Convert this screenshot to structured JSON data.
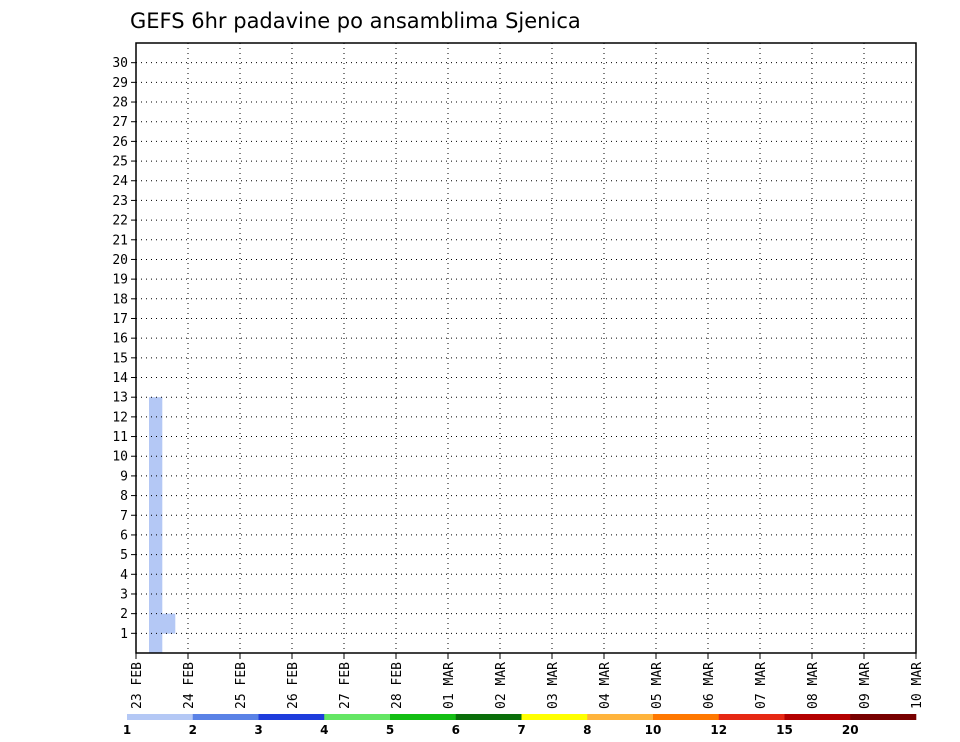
{
  "chart_data": {
    "type": "heatmap",
    "title": "GEFS 6hr padavine po ansamblima Sjenica",
    "members": [
      1,
      2,
      3,
      4,
      5,
      6,
      7,
      8,
      9,
      10,
      11,
      12,
      13,
      14,
      15,
      16,
      17,
      18,
      19,
      20,
      21,
      22,
      23,
      24,
      25,
      26,
      27,
      28,
      29,
      30
    ],
    "x_tick_labels": [
      "23 FEB",
      "24 FEB",
      "25 FEB",
      "26 FEB",
      "27 FEB",
      "28 FEB",
      "01 MAR",
      "02 MAR",
      "03 MAR",
      "04 MAR",
      "05 MAR",
      "06 MAR",
      "07 MAR",
      "08 MAR",
      "09 MAR",
      "10 MAR"
    ],
    "steps_per_day": 4,
    "grid": "dotted",
    "legend": {
      "position": "bottom",
      "levels": [
        "1",
        "2",
        "3",
        "4",
        "5",
        "6",
        "7",
        "8",
        "10",
        "12",
        "15",
        "20"
      ],
      "colors": [
        "#b4c8f5",
        "#5a82e6",
        "#1e3cdc",
        "#64e664",
        "#14be14",
        "#0a6e0a",
        "#ffff00",
        "#ffb43c",
        "#ff7800",
        "#e62814",
        "#b40000",
        "#780000"
      ]
    },
    "cells": [
      [
        0,
        1,
        1,
        16,
        16,
        1,
        17,
        17,
        1,
        18,
        18,
        2,
        28,
        28,
        1,
        29,
        29,
        1
      ],
      [
        1,
        1,
        2,
        16,
        16,
        2,
        17,
        17,
        1,
        18,
        18,
        1,
        19,
        19,
        1,
        20,
        20,
        1,
        21,
        21,
        5,
        22,
        22,
        1,
        28,
        28,
        1,
        40,
        40,
        1,
        74,
        74,
        1
      ],
      [
        2,
        1,
        1,
        16,
        16,
        2,
        17,
        17,
        2,
        18,
        18,
        2,
        19,
        19,
        1,
        20,
        20,
        1,
        25,
        25,
        1,
        26,
        26,
        1,
        34,
        34,
        1,
        35,
        35,
        2,
        36,
        36,
        2,
        42,
        42,
        3,
        45,
        45,
        3,
        46,
        46,
        4,
        47,
        47,
        4,
        48,
        48,
        4,
        49,
        49,
        4,
        53,
        54,
        2,
        61,
        62,
        2,
        70,
        70,
        1,
        71,
        71,
        2,
        74,
        74,
        3,
        75,
        75,
        1
      ],
      [
        3,
        1,
        1,
        16,
        16,
        1,
        17,
        17,
        1,
        18,
        18,
        1,
        19,
        19,
        1,
        20,
        20,
        2,
        21,
        21,
        3,
        22,
        22,
        3,
        23,
        23,
        1,
        24,
        24,
        3,
        25,
        25,
        8,
        28,
        28,
        1,
        29,
        29,
        1,
        30,
        30,
        3,
        45,
        45,
        1,
        52,
        54,
        1
      ],
      [
        4,
        1,
        1,
        16,
        16,
        1,
        17,
        17,
        1,
        18,
        18,
        2,
        19,
        19,
        2,
        20,
        20,
        4,
        21,
        21,
        5,
        25,
        25,
        7,
        26,
        26,
        9,
        27,
        27,
        9,
        28,
        28,
        5,
        29,
        29,
        4,
        30,
        30,
        1,
        38,
        38,
        1,
        40,
        40,
        1,
        42,
        42,
        1,
        44,
        44,
        2,
        49,
        49,
        4,
        50,
        50,
        4,
        55,
        55,
        2,
        73,
        73,
        1
      ],
      [
        5,
        1,
        1,
        16,
        16,
        2,
        17,
        17,
        4,
        18,
        18,
        3,
        19,
        19,
        5,
        20,
        20,
        5,
        21,
        21,
        1,
        22,
        22,
        2,
        23,
        23,
        2,
        24,
        24,
        3,
        25,
        25,
        5,
        26,
        26,
        6,
        27,
        27,
        7,
        35,
        35,
        1
      ],
      [
        6,
        1,
        1,
        16,
        16,
        2,
        17,
        17,
        3,
        18,
        18,
        6,
        19,
        19,
        5,
        20,
        20,
        6,
        21,
        21,
        2,
        22,
        22,
        5,
        23,
        23,
        5,
        24,
        24,
        1,
        25,
        25,
        1,
        28,
        28,
        1,
        29,
        29,
        2,
        30,
        30,
        2,
        31,
        31,
        1,
        32,
        32,
        1,
        33,
        33,
        1,
        34,
        34,
        1,
        35,
        35,
        2,
        36,
        36,
        2,
        37,
        37,
        2,
        38,
        38,
        1,
        39,
        39,
        1,
        40,
        40,
        1,
        42,
        42,
        1,
        53,
        53,
        1,
        55,
        55,
        1,
        62,
        62,
        1
      ],
      [
        7,
        1,
        1,
        16,
        16,
        2,
        17,
        17,
        2,
        18,
        18,
        1,
        19,
        19,
        1,
        20,
        20,
        3,
        21,
        21,
        1,
        22,
        22,
        6,
        23,
        23,
        6,
        24,
        24,
        3,
        25,
        25,
        9,
        26,
        26,
        9,
        27,
        27,
        1,
        30,
        30,
        2,
        31,
        31,
        1,
        32,
        32,
        1,
        33,
        33,
        2,
        34,
        34,
        2,
        35,
        35,
        3,
        36,
        36,
        2,
        38,
        38,
        1,
        40,
        40,
        1,
        44,
        44,
        1,
        48,
        48,
        1,
        49,
        49,
        1,
        50,
        50,
        1,
        52,
        52,
        1,
        58,
        58,
        2,
        59,
        59,
        2,
        60,
        60,
        2,
        62,
        62,
        1
      ],
      [
        8,
        1,
        1,
        16,
        16,
        1,
        17,
        17,
        1,
        18,
        18,
        1,
        19,
        19,
        1,
        20,
        20,
        1,
        21,
        21,
        2,
        22,
        22,
        1,
        23,
        23,
        1,
        25,
        25,
        1,
        28,
        28,
        1,
        32,
        32,
        1,
        43,
        43,
        1,
        44,
        44,
        1,
        45,
        45,
        1,
        53,
        53,
        1
      ],
      [
        9,
        1,
        1,
        16,
        16,
        2,
        17,
        17,
        1,
        18,
        18,
        1,
        19,
        19,
        2,
        20,
        20,
        1,
        21,
        21,
        3,
        22,
        22,
        1,
        23,
        23,
        5,
        24,
        24,
        7,
        25,
        25,
        8,
        26,
        26,
        9,
        27,
        27,
        10,
        28,
        28,
        1,
        29,
        29,
        1,
        30,
        30,
        1,
        31,
        31,
        1,
        32,
        32,
        1,
        37,
        37,
        1,
        40,
        40,
        1,
        42,
        42,
        2,
        43,
        43,
        2,
        48,
        48,
        1,
        49,
        49,
        1,
        51,
        51,
        1,
        53,
        53,
        1,
        54,
        54,
        1
      ],
      [
        10,
        1,
        1,
        16,
        16,
        1,
        17,
        17,
        1,
        18,
        18,
        1,
        19,
        19,
        1,
        20,
        20,
        2,
        21,
        21,
        3,
        22,
        22,
        3,
        23,
        23,
        2,
        24,
        24,
        3,
        25,
        25,
        5,
        26,
        26,
        6,
        27,
        27,
        9,
        28,
        28,
        1,
        29,
        29,
        1,
        30,
        30,
        1,
        31,
        31,
        1,
        32,
        32,
        1,
        33,
        33,
        1,
        38,
        38,
        1,
        39,
        39,
        1,
        44,
        44,
        1,
        46,
        46,
        1,
        51,
        51,
        1,
        53,
        53,
        1
      ],
      [
        11,
        1,
        1,
        16,
        16,
        1,
        17,
        17,
        1,
        18,
        18,
        1,
        19,
        19,
        3,
        20,
        20,
        2,
        21,
        21,
        4,
        22,
        22,
        5,
        23,
        23,
        1,
        24,
        24,
        1,
        25,
        25,
        5,
        26,
        26,
        7,
        27,
        27,
        8,
        28,
        28,
        3,
        29,
        29,
        1,
        30,
        30,
        1,
        31,
        31,
        1,
        32,
        32,
        1,
        33,
        33,
        1,
        34,
        34,
        1,
        35,
        35,
        1,
        36,
        36,
        1,
        37,
        37,
        1,
        38,
        38,
        1,
        39,
        39,
        1,
        40,
        40,
        1,
        41,
        41,
        1,
        43,
        43,
        1,
        44,
        44,
        1,
        45,
        45,
        1,
        46,
        46,
        1,
        47,
        47,
        1,
        48,
        48,
        1,
        49,
        49,
        1,
        50,
        50,
        1
      ],
      [
        12,
        1,
        1,
        16,
        16,
        1,
        17,
        17,
        1,
        18,
        18,
        1,
        19,
        19,
        1,
        20,
        20,
        1,
        21,
        21,
        4,
        22,
        22,
        5,
        23,
        23,
        5,
        24,
        24,
        3,
        25,
        25,
        5,
        26,
        26,
        8,
        27,
        27,
        6,
        28,
        28,
        6,
        29,
        29,
        5,
        30,
        30,
        3,
        31,
        31,
        1,
        32,
        32,
        1,
        33,
        33,
        1,
        34,
        34,
        1,
        35,
        35,
        1,
        36,
        36,
        1,
        46,
        46,
        3,
        58,
        58,
        1,
        59,
        59,
        3,
        60,
        60,
        1,
        61,
        61,
        1,
        62,
        62,
        1,
        63,
        63,
        1,
        64,
        64,
        1,
        65,
        65,
        1,
        66,
        66,
        1,
        67,
        67,
        1,
        68,
        68,
        1,
        69,
        69,
        1,
        70,
        70,
        1,
        71,
        71,
        1,
        72,
        72,
        1,
        73,
        73,
        1,
        74,
        74,
        1,
        75,
        75,
        1,
        76,
        76,
        1,
        77,
        77,
        1,
        78,
        78,
        1,
        79,
        79,
        1,
        80,
        80,
        1,
        81,
        81,
        1,
        82,
        82,
        1,
        83,
        83,
        1,
        84,
        84,
        1,
        85,
        85,
        1,
        86,
        86,
        1,
        87,
        87,
        1,
        88,
        88,
        1,
        89,
        89,
        1,
        90,
        90,
        1,
        91,
        91,
        1,
        92,
        92,
        1,
        93,
        93,
        1,
        94,
        94,
        1,
        95,
        95,
        1,
        96,
        96,
        1,
        97,
        97,
        1,
        98,
        98,
        1,
        99,
        99,
        1
      ]
    ]
  }
}
